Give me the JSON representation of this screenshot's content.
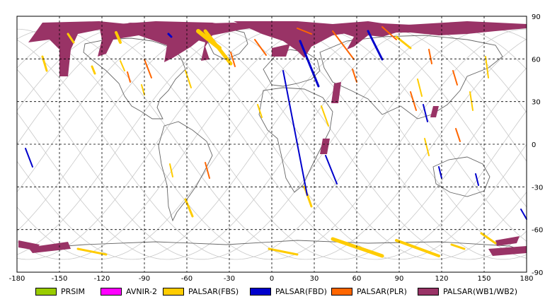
{
  "map": {
    "lon_ticks": [
      "-180",
      "-150",
      "-120",
      "-90",
      "-60",
      "-30",
      "0",
      "30",
      "60",
      "90",
      "120",
      "150",
      "180"
    ],
    "lat_ticks": [
      "90",
      "60",
      "30",
      "0",
      "-30",
      "-60",
      "-90"
    ]
  },
  "legend": [
    {
      "label": "PRSIM",
      "color": "#99cc00"
    },
    {
      "label": "AVNIR-2",
      "color": "#ff00ff"
    },
    {
      "label": "PALSAR(FBS)",
      "color": "#ffcc00"
    },
    {
      "label": "PALSAR(FBD)",
      "color": "#0000cc"
    },
    {
      "label": "PALSAR(PLR)",
      "color": "#ff6600"
    },
    {
      "label": "PALSAR(WB1/WB2)",
      "color": "#993366"
    }
  ],
  "colors": {
    "grid": "#000000",
    "orbit": "#c8c8c8",
    "coast": "#555555"
  }
}
